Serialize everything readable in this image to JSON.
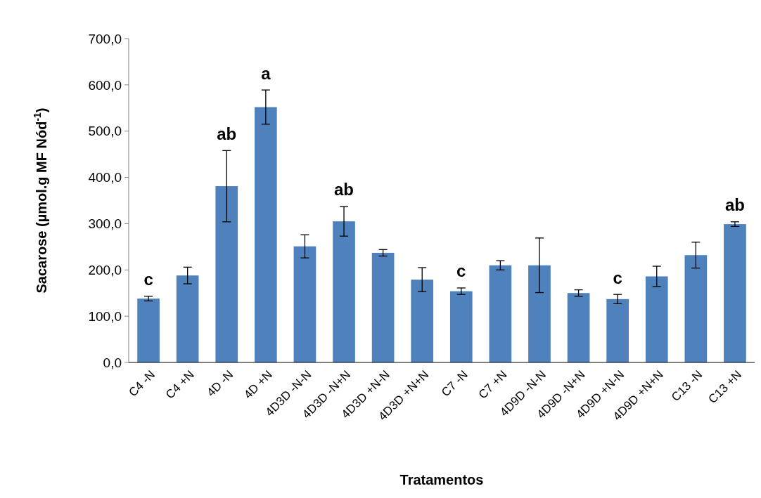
{
  "chart_data": {
    "type": "bar",
    "xlabel": "Tratamentos",
    "ylabel": "Sacarose (µmol.g MF Nód$^{-1}$)",
    "categories": [
      "C4 -N",
      "C4 +N",
      "4D -N",
      "4D +N",
      "4D3D -N-N",
      "4D3D -N+N",
      "4D3D +N-N",
      "4D3D +N+N",
      "C7 -N",
      "C7 +N",
      "4D9D -N-N",
      "4D9D -N+N",
      "4D9D +N-N",
      "4D9D +N+N",
      "C13 -N",
      "C13 +N"
    ],
    "values": [
      138,
      188,
      381,
      552,
      251,
      305,
      237,
      179,
      154,
      210,
      210,
      150,
      137,
      186,
      232,
      299
    ],
    "errors": [
      5,
      18,
      77,
      37,
      25,
      32,
      7,
      26,
      7,
      10,
      59,
      7,
      10,
      22,
      28,
      5
    ],
    "color": "#4f81bd",
    "ylim": [
      0,
      700
    ],
    "yticks": [
      {
        "value": 0,
        "label": "0,0"
      },
      {
        "value": 100,
        "label": "100,0"
      },
      {
        "value": 200,
        "label": "200,0"
      },
      {
        "value": 300,
        "label": "300,0"
      },
      {
        "value": 400,
        "label": "400,0"
      },
      {
        "value": 500,
        "label": "500,0"
      },
      {
        "value": 600,
        "label": "600,0"
      },
      {
        "value": 700,
        "label": "700,0"
      }
    ],
    "annotations": [
      {
        "text": "c",
        "x": "C4 -N",
        "y": 138
      },
      {
        "text": "ab",
        "x": "4D -N",
        "y": 381
      },
      {
        "text": "a",
        "x": "4D +N",
        "y": 552
      },
      {
        "text": "ab",
        "x": "4D3D -N+N",
        "y": 305
      },
      {
        "text": "c",
        "x": "C7 -N",
        "y": 154
      },
      {
        "text": "c",
        "x": "4D9D +N-N",
        "y": 137
      },
      {
        "text": "ab",
        "x": "C13 +N",
        "y": 299
      }
    ]
  }
}
